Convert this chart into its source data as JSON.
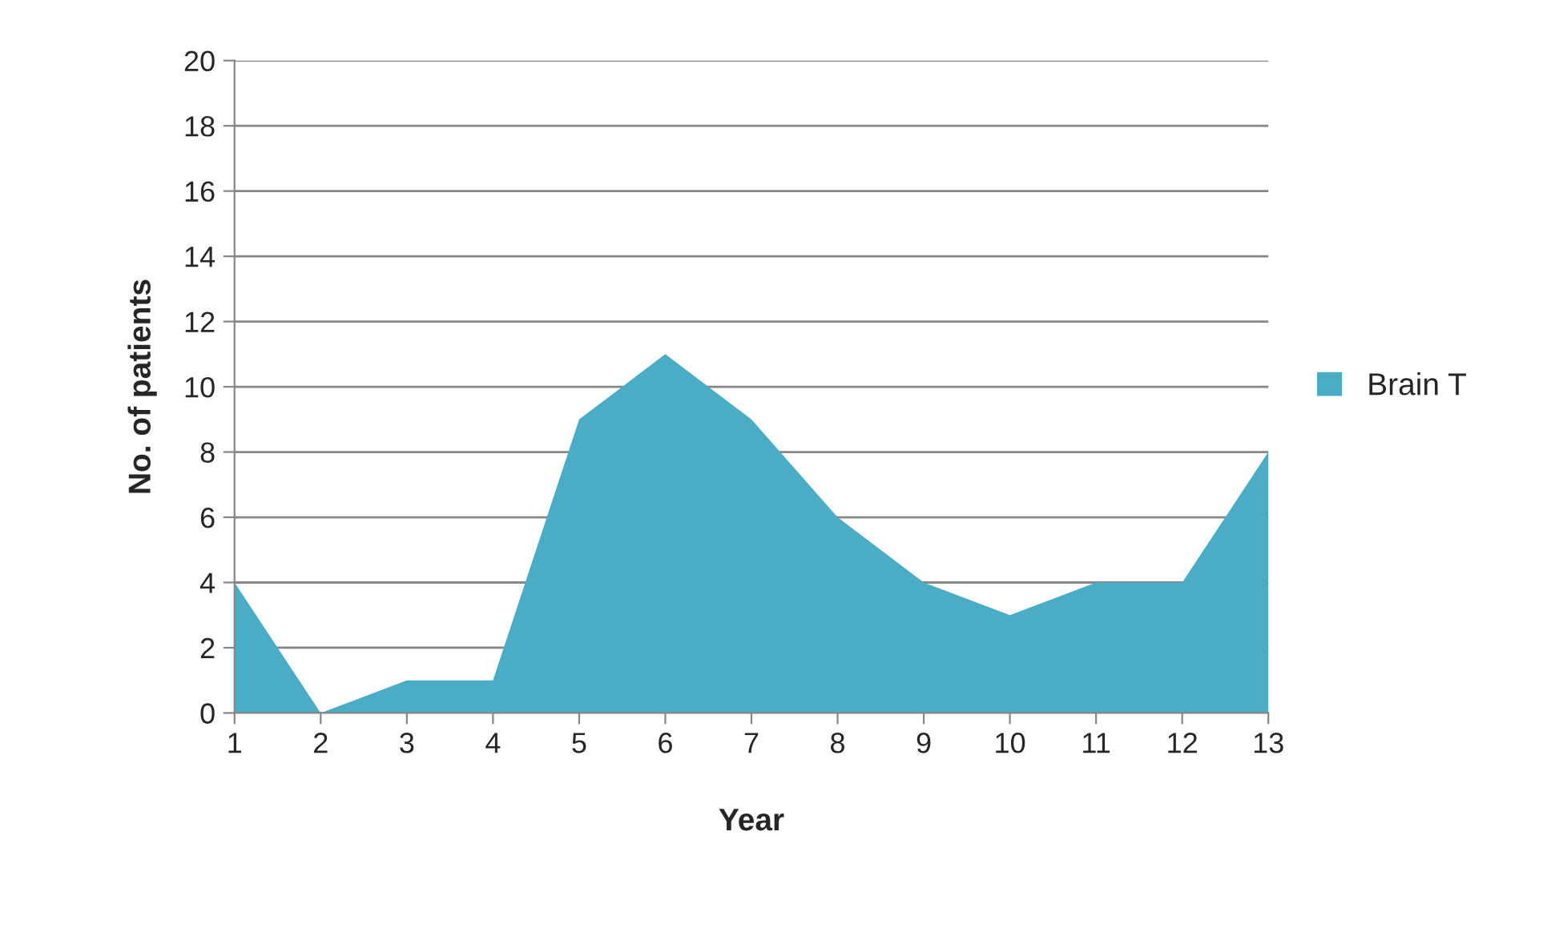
{
  "chart_data": {
    "type": "area",
    "xlabel": "Year",
    "ylabel": "No. of patients",
    "categories": [
      "1",
      "2",
      "3",
      "4",
      "5",
      "6",
      "7",
      "8",
      "9",
      "10",
      "11",
      "12",
      "13"
    ],
    "series": [
      {
        "name": "Brain T",
        "color": "#4bacc6",
        "values": [
          4,
          0,
          1,
          1,
          9,
          11,
          9,
          6,
          4,
          3,
          4,
          4,
          8
        ]
      }
    ],
    "ylim": [
      0,
      20
    ],
    "yticks": [
      0,
      2,
      4,
      6,
      8,
      10,
      12,
      14,
      16,
      18,
      20
    ],
    "grid": "y",
    "legend": "right"
  }
}
